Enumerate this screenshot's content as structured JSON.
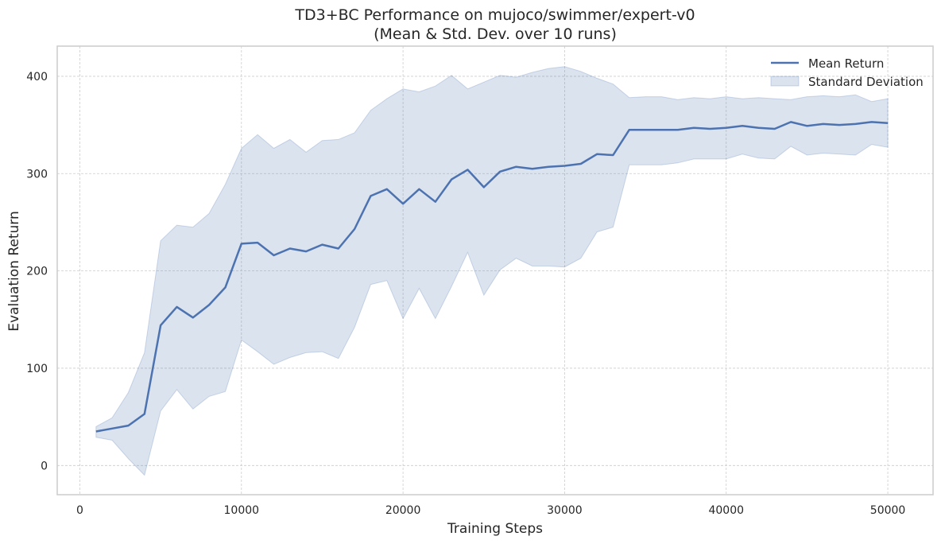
{
  "chart_data": {
    "type": "line",
    "title": [
      "TD3+BC Performance on mujoco/swimmer/expert-v0",
      "(Mean & Std. Dev. over 10 runs)"
    ],
    "xlabel": "Training Steps",
    "ylabel": "Evaluation Return",
    "xlim": [
      -1400,
      52800
    ],
    "ylim": [
      -30,
      431
    ],
    "xticks": [
      0,
      10000,
      20000,
      30000,
      40000,
      50000
    ],
    "xtick_labels": [
      "0",
      "10000",
      "20000",
      "30000",
      "40000",
      "50000"
    ],
    "yticks": [
      0,
      100,
      200,
      300,
      400
    ],
    "ytick_labels": [
      "0",
      "100",
      "200",
      "300",
      "400"
    ],
    "grid": true,
    "legend_position": "top-right",
    "legend": [
      "Mean Return",
      "Standard Deviation"
    ],
    "colors": {
      "line": "#4c72b0",
      "band": "#4c72b0",
      "spine": "#cccccc"
    },
    "x": [
      1000,
      2000,
      3000,
      4000,
      5000,
      6000,
      7000,
      8000,
      9000,
      10000,
      11000,
      12000,
      13000,
      14000,
      15000,
      16000,
      17000,
      18000,
      19000,
      20000,
      21000,
      22000,
      23000,
      24000,
      25000,
      26000,
      27000,
      28000,
      29000,
      30000,
      31000,
      32000,
      33000,
      34000,
      35000,
      36000,
      37000,
      38000,
      39000,
      40000,
      41000,
      42000,
      43000,
      44000,
      45000,
      46000,
      47000,
      48000,
      49000,
      50000
    ],
    "series": [
      {
        "name": "Mean Return",
        "values": [
          35,
          38,
          41,
          53,
          144,
          163,
          152,
          165,
          183,
          228,
          229,
          216,
          223,
          220,
          227,
          223,
          243,
          277,
          284,
          269,
          284,
          271,
          294,
          304,
          286,
          302,
          307,
          305,
          307,
          308,
          310,
          320,
          319,
          345,
          345,
          345,
          345,
          347,
          346,
          347,
          349,
          347,
          346,
          353,
          349,
          351,
          350,
          351,
          353,
          352
        ]
      },
      {
        "name": "Standard Deviation",
        "upper": [
          40,
          49,
          75,
          116,
          231,
          247,
          245,
          259,
          289,
          326,
          340,
          326,
          335,
          322,
          334,
          335,
          342,
          365,
          377,
          387,
          384,
          390,
          401,
          387,
          394,
          401,
          399,
          404,
          408,
          410,
          405,
          398,
          392,
          378,
          379,
          379,
          376,
          378,
          377,
          379,
          377,
          378,
          377,
          376,
          379,
          380,
          379,
          381,
          374,
          377
        ],
        "lower": [
          29,
          26,
          7,
          -10,
          56,
          78,
          58,
          71,
          76,
          129,
          117,
          104,
          111,
          116,
          117,
          110,
          142,
          186,
          190,
          151,
          182,
          151,
          184,
          219,
          175,
          201,
          213,
          205,
          205,
          204,
          213,
          240,
          245,
          309,
          309,
          309,
          311,
          315,
          315,
          315,
          320,
          316,
          315,
          328,
          319,
          321,
          320,
          319,
          330,
          327
        ]
      }
    ]
  }
}
